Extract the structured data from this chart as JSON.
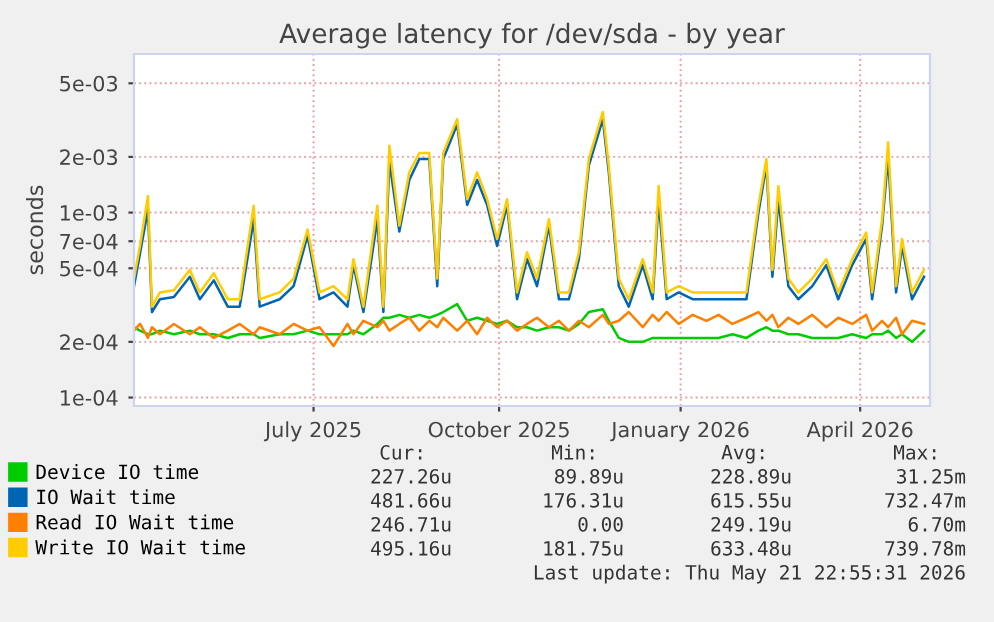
{
  "chart_data": {
    "type": "line",
    "title": "Average latency for /dev/sda - by year",
    "ylabel": "seconds",
    "log": "y",
    "grid": true,
    "legend": "bottom",
    "marker": "none",
    "line_style": "solid",
    "ylim": [
      9e-05,
      0.0072
    ],
    "yticks": [
      {
        "value": 0.0001,
        "label": "1e-04"
      },
      {
        "value": 0.0002,
        "label": "2e-04"
      },
      {
        "value": 0.0005,
        "label": "5e-04"
      },
      {
        "value": 0.0007,
        "label": "7e-04"
      },
      {
        "value": 0.001,
        "label": "1e-03"
      },
      {
        "value": 0.002,
        "label": "2e-03"
      },
      {
        "value": 0.005,
        "label": "5e-03"
      }
    ],
    "xlim": [
      "2025-04-20",
      "2026-05-24"
    ],
    "xticks": [
      {
        "value": "2025-07-19",
        "label": "July 2025"
      },
      {
        "value": "2025-10-20",
        "label": "October 2025"
      },
      {
        "value": "2026-01-19",
        "label": "January 2026"
      },
      {
        "value": "2026-04-19",
        "label": "April 2026"
      }
    ],
    "x": [
      "2025-04-20",
      "2025-04-23",
      "2025-04-27",
      "2025-04-29",
      "2025-05-03",
      "2025-05-10",
      "2025-05-18",
      "2025-05-23",
      "2025-05-30",
      "2025-06-06",
      "2025-06-12",
      "2025-06-19",
      "2025-06-22",
      "2025-07-02",
      "2025-07-09",
      "2025-07-16",
      "2025-07-22",
      "2025-07-29",
      "2025-08-05",
      "2025-08-08",
      "2025-08-13",
      "2025-08-20",
      "2025-08-23",
      "2025-08-26",
      "2025-08-31",
      "2025-09-05",
      "2025-09-10",
      "2025-09-15",
      "2025-09-19",
      "2025-09-22",
      "2025-09-29",
      "2025-10-04",
      "2025-10-09",
      "2025-10-14",
      "2025-10-19",
      "2025-10-24",
      "2025-10-29",
      "2025-11-03",
      "2025-11-08",
      "2025-11-14",
      "2025-11-19",
      "2025-11-24",
      "2025-11-29",
      "2025-12-04",
      "2025-12-11",
      "2025-12-14",
      "2025-12-19",
      "2025-12-24",
      "2025-12-31",
      "2026-01-05",
      "2026-01-08",
      "2026-01-12",
      "2026-01-18",
      "2026-01-25",
      "2026-02-01",
      "2026-02-07",
      "2026-02-14",
      "2026-02-21",
      "2026-02-27",
      "2026-03-03",
      "2026-03-06",
      "2026-03-09",
      "2026-03-14",
      "2026-03-19",
      "2026-03-26",
      "2026-04-02",
      "2026-04-08",
      "2026-04-15",
      "2026-04-22",
      "2026-04-25",
      "2026-04-30",
      "2026-05-03",
      "2026-05-07",
      "2026-05-10",
      "2026-05-15",
      "2026-05-21"
    ],
    "series": [
      {
        "name": "Device IO time",
        "color": "#00cc00",
        "values": [
          0.00024,
          0.00023,
          0.00022,
          0.00022,
          0.00023,
          0.00022,
          0.00023,
          0.00022,
          0.00022,
          0.00021,
          0.00022,
          0.00022,
          0.00021,
          0.00022,
          0.00022,
          0.00023,
          0.00022,
          0.00022,
          0.00022,
          0.00023,
          0.00022,
          0.00025,
          0.00027,
          0.00027,
          0.00028,
          0.00027,
          0.00028,
          0.00027,
          0.00028,
          0.00029,
          0.00032,
          0.00026,
          0.00027,
          0.00026,
          0.00025,
          0.00026,
          0.00024,
          0.00024,
          0.00023,
          0.00024,
          0.00024,
          0.00023,
          0.00025,
          0.00029,
          0.0003,
          0.00026,
          0.00021,
          0.0002,
          0.0002,
          0.00021,
          0.00021,
          0.00021,
          0.00021,
          0.00021,
          0.00021,
          0.00021,
          0.00022,
          0.00021,
          0.00023,
          0.00024,
          0.00023,
          0.00023,
          0.00022,
          0.00022,
          0.00021,
          0.00021,
          0.00021,
          0.00022,
          0.00021,
          0.00022,
          0.00022,
          0.00023,
          0.00021,
          0.00022,
          0.0002,
          0.00023
        ]
      },
      {
        "name": "IO Wait time",
        "color": "#0066b3",
        "values": [
          0.0004,
          0.0006,
          0.00104,
          0.00029,
          0.00034,
          0.00035,
          0.00045,
          0.00034,
          0.00043,
          0.00031,
          0.00031,
          0.00092,
          0.00031,
          0.00034,
          0.0004,
          0.00075,
          0.00034,
          0.00037,
          0.00031,
          0.00052,
          0.00029,
          0.00092,
          0.00029,
          0.0019,
          0.00079,
          0.0015,
          0.00195,
          0.00195,
          0.0004,
          0.00195,
          0.003,
          0.0011,
          0.0015,
          0.0011,
          0.00066,
          0.0011,
          0.00034,
          0.00056,
          0.0004,
          0.00085,
          0.00034,
          0.00034,
          0.00056,
          0.0018,
          0.0032,
          0.00165,
          0.0004,
          0.00031,
          0.00052,
          0.00034,
          0.00118,
          0.00034,
          0.00037,
          0.00034,
          0.00034,
          0.00034,
          0.00034,
          0.00034,
          0.001,
          0.0018,
          0.00045,
          0.00118,
          0.0004,
          0.00034,
          0.0004,
          0.00052,
          0.00034,
          0.00052,
          0.00072,
          0.00034,
          0.00085,
          0.002,
          0.00037,
          0.00066,
          0.00034,
          0.00045
        ]
      },
      {
        "name": "Read IO Wait time",
        "color": "#ff8000",
        "values": [
          0.00023,
          0.00025,
          0.00021,
          0.00024,
          0.00022,
          0.00025,
          0.00022,
          0.00024,
          0.00021,
          0.00023,
          0.00025,
          0.00022,
          0.00024,
          0.00022,
          0.00025,
          0.00023,
          0.00024,
          0.00019,
          0.00025,
          0.00022,
          0.00026,
          0.00024,
          0.00026,
          0.00023,
          0.00025,
          0.00027,
          0.00023,
          0.00026,
          0.00024,
          0.00027,
          0.00023,
          0.00026,
          0.00022,
          0.00027,
          0.00024,
          0.00026,
          0.00023,
          0.00025,
          0.00027,
          0.00024,
          0.00026,
          0.00023,
          0.00026,
          0.00024,
          0.00028,
          0.00025,
          0.00026,
          0.00029,
          0.00024,
          0.00028,
          0.00026,
          0.00029,
          0.00025,
          0.00028,
          0.00026,
          0.00028,
          0.00025,
          0.00027,
          0.00029,
          0.00026,
          0.00028,
          0.00024,
          0.00027,
          0.00025,
          0.00028,
          0.00024,
          0.00027,
          0.00025,
          0.00028,
          0.00023,
          0.00026,
          0.00024,
          0.00027,
          0.00022,
          0.00026,
          0.00025
        ]
      },
      {
        "name": "Write IO Wait time",
        "color": "#ffcc00",
        "values": [
          0.00044,
          0.00066,
          0.00123,
          0.00031,
          0.00037,
          0.00038,
          0.00049,
          0.00037,
          0.00047,
          0.00034,
          0.00034,
          0.00109,
          0.00034,
          0.00037,
          0.00044,
          0.00081,
          0.00037,
          0.0004,
          0.00034,
          0.00056,
          0.00031,
          0.00109,
          0.00031,
          0.0023,
          0.00085,
          0.00165,
          0.0021,
          0.0021,
          0.00044,
          0.0021,
          0.0032,
          0.00118,
          0.00165,
          0.00118,
          0.00072,
          0.00118,
          0.00037,
          0.00061,
          0.00044,
          0.00092,
          0.00037,
          0.00037,
          0.00061,
          0.00195,
          0.0035,
          0.00179,
          0.00044,
          0.00034,
          0.00056,
          0.00037,
          0.00139,
          0.00037,
          0.0004,
          0.00037,
          0.00037,
          0.00037,
          0.00037,
          0.00037,
          0.00109,
          0.00195,
          0.00049,
          0.00139,
          0.00044,
          0.00037,
          0.00044,
          0.00056,
          0.00037,
          0.00056,
          0.00078,
          0.00037,
          0.00092,
          0.0024,
          0.0004,
          0.00072,
          0.00037,
          0.00049
        ]
      }
    ],
    "annotations": [
      "Cur:",
      "Min:",
      "Avg:",
      "Max:",
      "227.26u",
      "89.89u",
      "228.89u",
      "31.25m",
      "481.66u",
      "176.31u",
      "615.55u",
      "732.47m",
      "246.71u",
      "0.00",
      "249.19u",
      "6.70m",
      "495.16u",
      "181.75u",
      "633.48u",
      "739.78m",
      "Last update: Thu May 21 22:55:31 2026"
    ]
  }
}
